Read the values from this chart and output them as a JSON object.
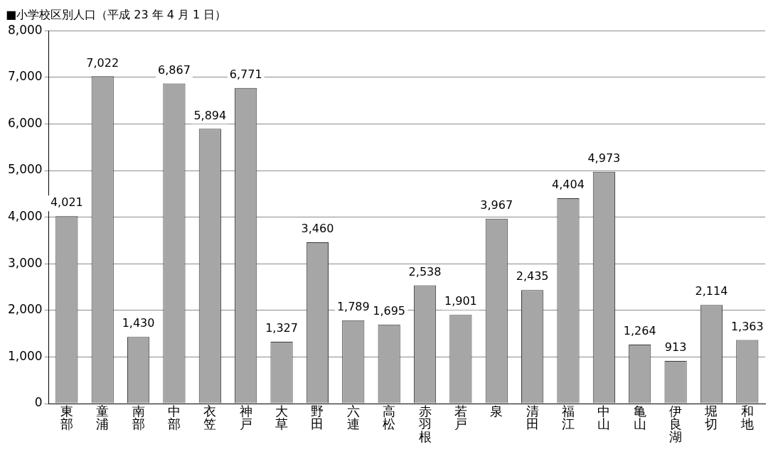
{
  "chart_data": {
    "type": "bar",
    "title": "■小学校区別人口（平成 23 年 4 月 1 日）",
    "categories": [
      "東部",
      "童浦",
      "南部",
      "中部",
      "衣笠",
      "神戸",
      "大草",
      "野田",
      "六連",
      "高松",
      "赤羽根",
      "若戸",
      "泉",
      "清田",
      "福江",
      "中山",
      "亀山",
      "伊良湖",
      "堀切",
      "和地"
    ],
    "values": [
      4021,
      7022,
      1430,
      6867,
      5894,
      6771,
      1327,
      3460,
      1789,
      1695,
      2538,
      1901,
      3967,
      2435,
      4404,
      4973,
      1264,
      913,
      2114,
      1363
    ],
    "color": "#a6a6a6",
    "ylim": [
      0,
      8000
    ],
    "yticks": [
      {
        "value": 0,
        "label": "0"
      },
      {
        "value": 1000,
        "label": "1,000"
      },
      {
        "value": 2000,
        "label": "2,000"
      },
      {
        "value": 3000,
        "label": "3,000"
      },
      {
        "value": 4000,
        "label": "4,000"
      },
      {
        "value": 5000,
        "label": "5,000"
      },
      {
        "value": 6000,
        "label": "6,000"
      },
      {
        "value": 7000,
        "label": "7,000"
      },
      {
        "value": 8000,
        "label": "8,000"
      }
    ],
    "value_labels": [
      "4,021",
      "7,022",
      "1,430",
      "6,867",
      "5,894",
      "6,771",
      "1,327",
      "3,460",
      "1,789",
      "1,695",
      "2,538",
      "1,901",
      "3,967",
      "2,435",
      "4,404",
      "4,973",
      "1,264",
      "913",
      "2,114",
      "1,363"
    ],
    "grid": "y",
    "legend": false
  }
}
